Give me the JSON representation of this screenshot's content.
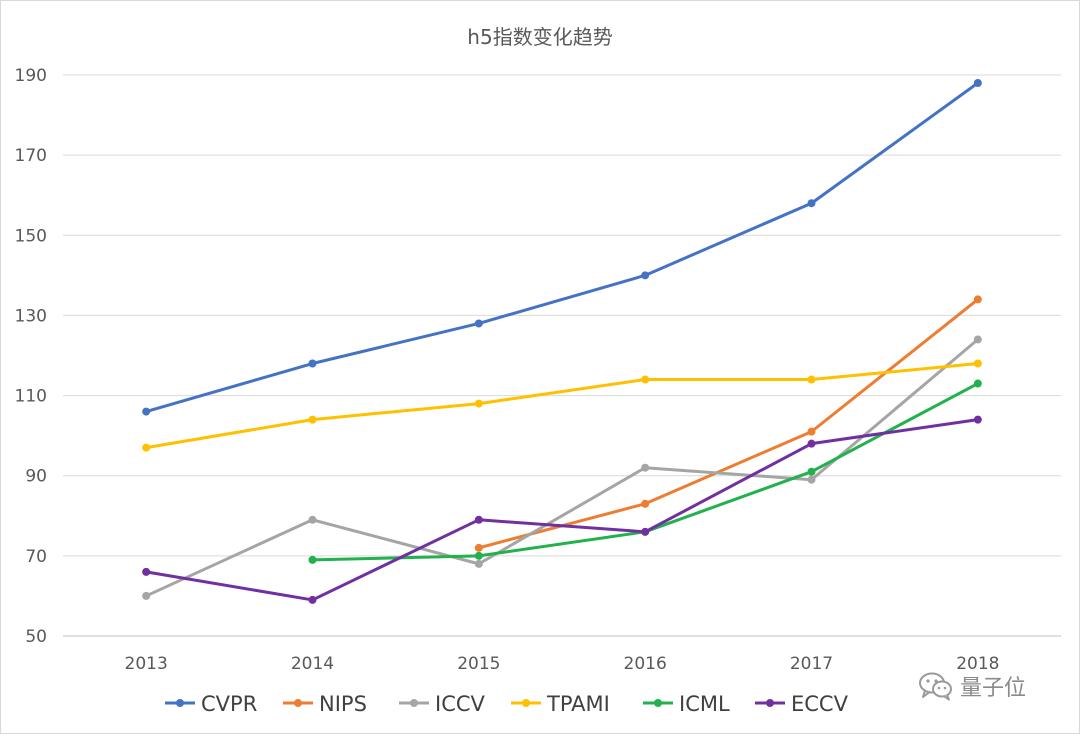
{
  "chart_data": {
    "type": "line",
    "title": "h5指数变化趋势",
    "x": [
      "2013",
      "2014",
      "2015",
      "2016",
      "2017",
      "2018"
    ],
    "ylim": [
      50,
      190
    ],
    "yticks": [
      50,
      70,
      90,
      110,
      130,
      150,
      170,
      190
    ],
    "grid": true,
    "legend_position": "bottom",
    "series": [
      {
        "name": "CVPR",
        "color": "#4472c4",
        "values": [
          106,
          118,
          128,
          140,
          158,
          188
        ]
      },
      {
        "name": "NIPS",
        "color": "#ed7d31",
        "values": [
          null,
          null,
          72,
          83,
          101,
          134
        ]
      },
      {
        "name": "ICCV",
        "color": "#a5a5a5",
        "values": [
          60,
          79,
          68,
          92,
          89,
          124
        ]
      },
      {
        "name": "TPAMI",
        "color": "#ffc000",
        "values": [
          97,
          104,
          108,
          114,
          114,
          118
        ]
      },
      {
        "name": "ICML",
        "color": "#22b14c",
        "values": [
          null,
          69,
          70,
          76,
          91,
          113
        ]
      },
      {
        "name": "ECCV",
        "color": "#7030a0",
        "values": [
          66,
          59,
          79,
          76,
          98,
          104
        ]
      }
    ]
  },
  "watermark": {
    "text": "量子位",
    "icon": "wechat-icon"
  }
}
